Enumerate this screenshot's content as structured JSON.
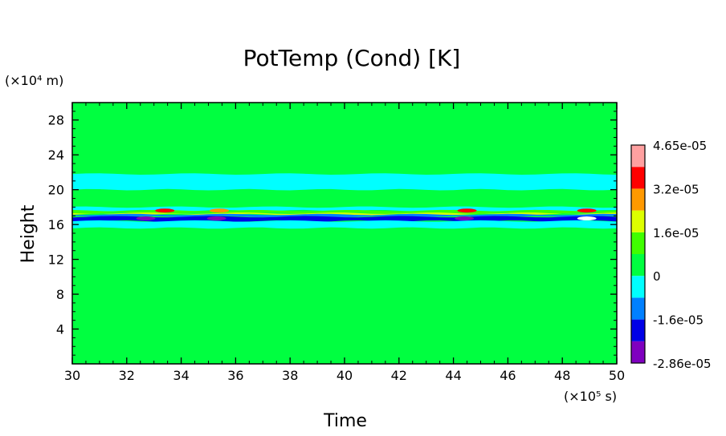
{
  "chart_data": {
    "type": "heatmap",
    "title": "PotTemp (Cond) [K]",
    "xlabel": "Time",
    "ylabel": "Height",
    "x_unit": "(×10⁵ s)",
    "y_unit": "(×10⁴ m)",
    "xlim": [
      30,
      50
    ],
    "ylim": [
      0,
      30
    ],
    "x_ticks": [
      "30",
      "32",
      "34",
      "36",
      "38",
      "40",
      "42",
      "44",
      "46",
      "48",
      "50"
    ],
    "y_ticks": [
      "4",
      "8",
      "12",
      "16",
      "20",
      "24",
      "28"
    ],
    "x_tick_values": [
      30,
      32,
      34,
      36,
      38,
      40,
      42,
      44,
      46,
      48,
      50
    ],
    "y_tick_values": [
      4,
      8,
      12,
      16,
      20,
      24,
      28
    ],
    "colorbar": {
      "levels": [
        {
          "color": "#7F00BF"
        },
        {
          "color": "#0000E6"
        },
        {
          "color": "#0080FF"
        },
        {
          "color": "#00FFFF"
        },
        {
          "color": "#00FF40"
        },
        {
          "color": "#40FF00"
        },
        {
          "color": "#DDFF00"
        },
        {
          "color": "#FF9900"
        },
        {
          "color": "#FF0000"
        },
        {
          "color": "#FFA0A0"
        }
      ],
      "labels": [
        "4.65e-05",
        "3.2e-05",
        "1.6e-05",
        "0",
        "-1.6e-05",
        "-2.86e-05"
      ]
    },
    "background_value_color": "#00FF40",
    "bands": [
      {
        "from": 20.0,
        "to": 21.8,
        "color": "#00FFFF"
      },
      {
        "from": 17.6,
        "to": 18.0,
        "color": "#00FFFF"
      },
      {
        "from": 17.3,
        "to": 17.6,
        "color": "#40FF00"
      },
      {
        "from": 17.15,
        "to": 17.3,
        "color": "#DDFF00"
      },
      {
        "from": 16.9,
        "to": 17.15,
        "color": "#0080FF"
      },
      {
        "from": 16.4,
        "to": 16.9,
        "color": "#0000E6"
      },
      {
        "from": 15.6,
        "to": 16.4,
        "color": "#00FFFF"
      }
    ],
    "spots": [
      {
        "x": 33.4,
        "y": 17.6,
        "color": "#FF0000"
      },
      {
        "x": 35.4,
        "y": 17.6,
        "color": "#FF9900"
      },
      {
        "x": 44.5,
        "y": 17.6,
        "color": "#FF0000"
      },
      {
        "x": 48.9,
        "y": 17.6,
        "color": "#FF0000"
      },
      {
        "x": 48.9,
        "y": 16.7,
        "color": "#FFFFFF"
      },
      {
        "x": 32.7,
        "y": 16.7,
        "color": "#7F00BF"
      },
      {
        "x": 35.3,
        "y": 16.7,
        "color": "#7F00BF"
      },
      {
        "x": 44.4,
        "y": 16.7,
        "color": "#7F00BF"
      }
    ]
  }
}
